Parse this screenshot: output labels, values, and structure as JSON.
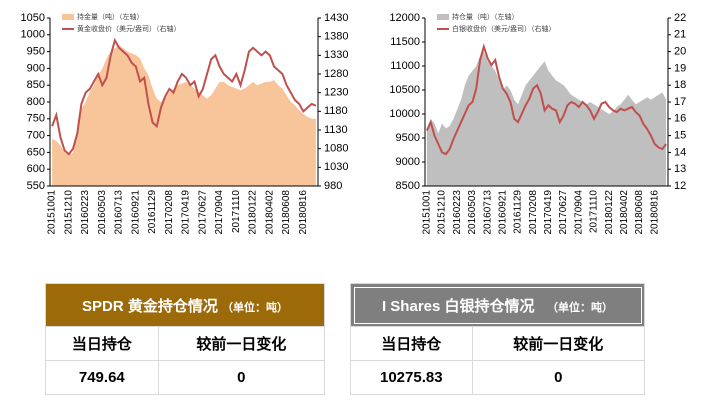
{
  "chart_data": [
    {
      "type": "area-line",
      "yaxis": "dual",
      "categories": [
        "20151001",
        null,
        null,
        null,
        "20151210",
        null,
        null,
        null,
        "20160223",
        null,
        null,
        null,
        "20160503",
        null,
        null,
        null,
        "20160713",
        null,
        null,
        null,
        "20160921",
        null,
        null,
        null,
        "20161129",
        null,
        null,
        null,
        "20170208",
        null,
        null,
        null,
        "20170419",
        null,
        null,
        null,
        "20170627",
        null,
        null,
        null,
        "20170904",
        null,
        null,
        null,
        "20171110",
        null,
        null,
        null,
        "20180122",
        null,
        null,
        null,
        "20180402",
        null,
        null,
        null,
        "20180608",
        null,
        null,
        null,
        "20180816",
        null,
        null,
        null
      ],
      "series": [
        {
          "name": "持金量（吨）（左轴）",
          "color": "#f8c49a",
          "kind": "area",
          "values": [
            690,
            685,
            670,
            650,
            640,
            650,
            700,
            780,
            800,
            830,
            850,
            880,
            900,
            930,
            950,
            960,
            970,
            960,
            950,
            945,
            940,
            930,
            900,
            880,
            840,
            810,
            800,
            810,
            830,
            840,
            850,
            855,
            860,
            850,
            840,
            830,
            820,
            810,
            820,
            840,
            860,
            860,
            850,
            845,
            840,
            835,
            840,
            850,
            860,
            850,
            855,
            860,
            860,
            865,
            850,
            840,
            820,
            800,
            790,
            775,
            765,
            755,
            750,
            750
          ]
        },
        {
          "name": "黄金收盘价（美元/盎司）（右轴）",
          "color": "#c0504d",
          "kind": "line",
          "axis": "y2",
          "values": [
            1140,
            1170,
            1110,
            1075,
            1065,
            1080,
            1120,
            1200,
            1230,
            1240,
            1260,
            1280,
            1250,
            1270,
            1330,
            1370,
            1350,
            1340,
            1330,
            1310,
            1300,
            1260,
            1270,
            1200,
            1150,
            1140,
            1190,
            1220,
            1240,
            1230,
            1260,
            1280,
            1270,
            1250,
            1260,
            1220,
            1240,
            1280,
            1320,
            1330,
            1300,
            1280,
            1270,
            1260,
            1280,
            1250,
            1290,
            1340,
            1350,
            1340,
            1330,
            1340,
            1330,
            1300,
            1290,
            1280,
            1250,
            1230,
            1210,
            1200,
            1180,
            1190,
            1200,
            1195
          ]
        }
      ],
      "ylim": [
        550,
        1050
      ],
      "yticks": [
        550,
        600,
        650,
        700,
        750,
        800,
        850,
        900,
        950,
        1000,
        1050
      ],
      "y2lim": [
        980,
        1430
      ],
      "y2ticks": [
        980,
        1030,
        1080,
        1130,
        1180,
        1230,
        1280,
        1330,
        1380,
        1430
      ]
    },
    {
      "type": "area-line",
      "yaxis": "dual",
      "categories": [
        "20151001",
        null,
        null,
        null,
        "20151210",
        null,
        null,
        null,
        "20160223",
        null,
        null,
        null,
        "20160503",
        null,
        null,
        null,
        "20160713",
        null,
        null,
        null,
        "20160921",
        null,
        null,
        null,
        "20161129",
        null,
        null,
        null,
        "20170208",
        null,
        null,
        null,
        "20170419",
        null,
        null,
        null,
        "20170627",
        null,
        null,
        null,
        "20170904",
        null,
        null,
        null,
        "20171110",
        null,
        null,
        null,
        "20180122",
        null,
        null,
        null,
        "20180402",
        null,
        null,
        null,
        "20180608",
        null,
        null,
        null,
        "20180816",
        null,
        null,
        null
      ],
      "series": [
        {
          "name": "持仓量（吨）（左轴）",
          "color": "#bfbfbf",
          "kind": "area",
          "values": [
            9700,
            9900,
            9800,
            9600,
            9800,
            9700,
            9750,
            9900,
            10100,
            10300,
            10600,
            10800,
            10900,
            11000,
            11200,
            11300,
            11100,
            11000,
            10900,
            10700,
            10500,
            10600,
            10500,
            10300,
            10200,
            10400,
            10600,
            10700,
            10800,
            10900,
            11000,
            11100,
            10900,
            10800,
            10700,
            10650,
            10600,
            10500,
            10400,
            10350,
            10300,
            10250,
            10200,
            10250,
            10200,
            10150,
            10100,
            10050,
            10000,
            10050,
            10150,
            10200,
            10300,
            10400,
            10300,
            10200,
            10250,
            10300,
            10350,
            10300,
            10350,
            10400,
            10450,
            10300
          ]
        },
        {
          "name": "白银收盘价（美元/盎司）（右轴）",
          "color": "#c0504d",
          "kind": "line",
          "axis": "y2",
          "values": [
            15.3,
            15.8,
            15.0,
            14.5,
            14.0,
            13.9,
            14.2,
            14.8,
            15.3,
            15.8,
            16.3,
            16.8,
            17.0,
            17.8,
            19.5,
            20.3,
            19.6,
            19.2,
            19.5,
            18.5,
            17.8,
            17.5,
            17.0,
            16.0,
            15.8,
            16.3,
            16.8,
            17.2,
            17.8,
            18.0,
            17.5,
            16.5,
            16.8,
            16.6,
            16.5,
            15.8,
            16.2,
            16.8,
            17.0,
            16.9,
            16.7,
            17.0,
            16.8,
            16.5,
            16.0,
            16.4,
            16.9,
            17.0,
            16.7,
            16.5,
            16.4,
            16.6,
            16.5,
            16.6,
            16.7,
            16.4,
            16.2,
            15.7,
            15.4,
            15.0,
            14.5,
            14.3,
            14.2,
            14.5
          ]
        }
      ],
      "ylim": [
        8500,
        12000
      ],
      "yticks": [
        8500,
        9000,
        9500,
        10000,
        10500,
        11000,
        11500,
        12000
      ],
      "y2lim": [
        12,
        22
      ],
      "y2ticks": [
        12,
        13,
        14,
        15,
        16,
        17,
        18,
        19,
        20,
        21,
        22
      ]
    }
  ],
  "tables": [
    {
      "title": "SPDR 黄金持仓情况",
      "unit": "（单位：吨）",
      "header": [
        "当日持仓",
        "较前一日变化"
      ],
      "row": [
        749.64,
        0
      ]
    },
    {
      "title": "I Shares 白银持仓情况",
      "unit": "（单位：吨）",
      "header": [
        "当日持仓",
        "较前一日变化"
      ],
      "row": [
        10275.83,
        0
      ]
    }
  ]
}
